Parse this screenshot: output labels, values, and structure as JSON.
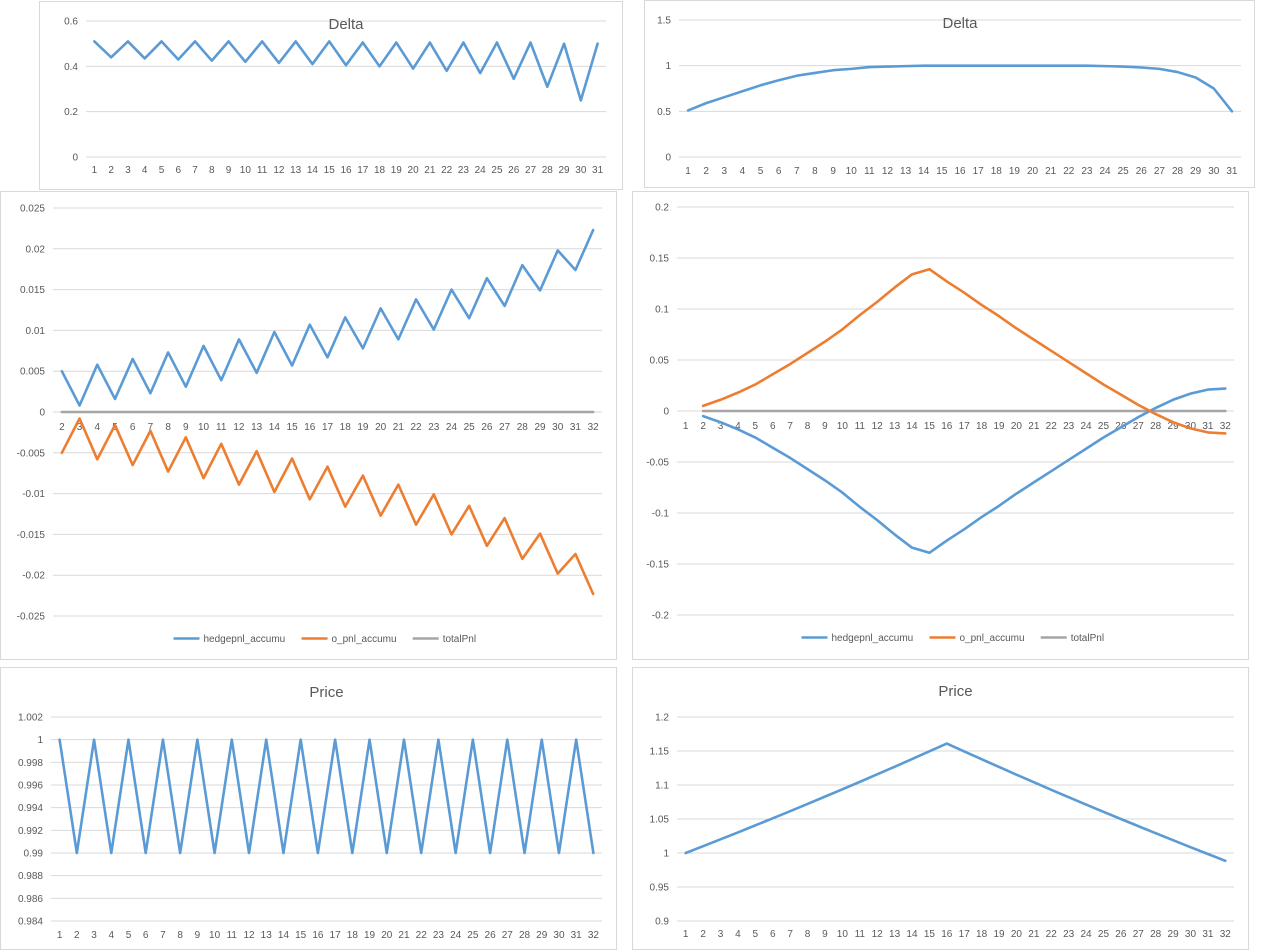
{
  "colors": {
    "blue": "#5b9bd5",
    "orange": "#ed7d31",
    "gray": "#a5a5a5",
    "grid": "#d9d9d9",
    "text": "#595959"
  },
  "chart_data": [
    {
      "type": "line",
      "title": "Delta",
      "x": [
        1,
        2,
        3,
        4,
        5,
        6,
        7,
        8,
        9,
        10,
        11,
        12,
        13,
        14,
        15,
        16,
        17,
        18,
        19,
        20,
        21,
        22,
        23,
        24,
        25,
        26,
        27,
        28,
        29,
        30,
        31
      ],
      "ylim": [
        0,
        0.6
      ],
      "yticks": [
        "0.6",
        "0.4",
        "0.2",
        "0"
      ],
      "series": [
        {
          "values": [
            0.51,
            0.44,
            0.51,
            0.435,
            0.51,
            0.43,
            0.51,
            0.425,
            0.51,
            0.42,
            0.51,
            0.415,
            0.51,
            0.41,
            0.51,
            0.405,
            0.505,
            0.4,
            0.505,
            0.39,
            0.505,
            0.38,
            0.505,
            0.37,
            0.505,
            0.345,
            0.505,
            0.31,
            0.5,
            0.25,
            0.5
          ]
        }
      ]
    },
    {
      "type": "line",
      "title": "Delta",
      "x": [
        1,
        2,
        3,
        4,
        5,
        6,
        7,
        8,
        9,
        10,
        11,
        12,
        13,
        14,
        15,
        16,
        17,
        18,
        19,
        20,
        21,
        22,
        23,
        24,
        25,
        26,
        27,
        28,
        29,
        30,
        31
      ],
      "ylim": [
        0,
        1.5
      ],
      "yticks": [
        "1.5",
        "1",
        "0.5",
        "0"
      ],
      "series": [
        {
          "values": [
            0.51,
            0.59,
            0.655,
            0.72,
            0.785,
            0.84,
            0.89,
            0.92,
            0.95,
            0.965,
            0.985,
            0.99,
            0.995,
            1,
            1,
            1,
            1,
            1,
            1,
            1,
            1,
            1,
            1,
            0.995,
            0.99,
            0.98,
            0.965,
            0.93,
            0.87,
            0.75,
            0.5
          ]
        }
      ]
    },
    {
      "type": "line",
      "title": "",
      "x": [
        2,
        3,
        4,
        5,
        6,
        7,
        8,
        9,
        10,
        11,
        12,
        13,
        14,
        15,
        16,
        17,
        18,
        19,
        20,
        21,
        22,
        23,
        24,
        25,
        26,
        27,
        28,
        29,
        30,
        31,
        32
      ],
      "ylim": [
        -0.025,
        0.025
      ],
      "yticks": [
        "0.025",
        "0.02",
        "0.015",
        "0.01",
        "0.005",
        "0",
        "-0.005",
        "-0.01",
        "-0.015",
        "-0.02",
        "-0.025"
      ],
      "legend": "bottom",
      "series": [
        {
          "name": "hedgepnl_accumu",
          "values": [
            0.005,
            0.0008,
            0.0058,
            0.0016,
            0.0065,
            0.0023,
            0.0073,
            0.0031,
            0.0081,
            0.0039,
            0.0089,
            0.0048,
            0.0098,
            0.0057,
            0.0107,
            0.0067,
            0.0116,
            0.0078,
            0.0127,
            0.0089,
            0.0138,
            0.0101,
            0.015,
            0.0115,
            0.0164,
            0.013,
            0.018,
            0.0149,
            0.0198,
            0.0174,
            0.0223
          ]
        },
        {
          "name": "o_pnl_accumu",
          "values": [
            -0.005,
            -0.0008,
            -0.0058,
            -0.0016,
            -0.0065,
            -0.0023,
            -0.0073,
            -0.0031,
            -0.0081,
            -0.0039,
            -0.0089,
            -0.0048,
            -0.0098,
            -0.0057,
            -0.0107,
            -0.0067,
            -0.0116,
            -0.0078,
            -0.0127,
            -0.0089,
            -0.0138,
            -0.0101,
            -0.015,
            -0.0115,
            -0.0164,
            -0.013,
            -0.018,
            -0.0149,
            -0.0198,
            -0.0174,
            -0.0223
          ]
        },
        {
          "name": "totalPnl",
          "values": [
            0,
            0,
            0,
            0,
            0,
            0,
            0,
            0,
            0,
            0,
            0,
            0,
            0,
            0,
            0,
            0,
            0,
            0,
            0,
            0,
            0,
            0,
            0,
            0,
            0,
            0,
            0,
            0,
            0,
            0,
            0
          ]
        }
      ]
    },
    {
      "type": "line",
      "title": "",
      "x": [
        1,
        2,
        3,
        4,
        5,
        6,
        7,
        8,
        9,
        10,
        11,
        12,
        13,
        14,
        15,
        16,
        17,
        18,
        19,
        20,
        21,
        22,
        23,
        24,
        25,
        26,
        27,
        28,
        29,
        30,
        31,
        32
      ],
      "ylim": [
        -0.2,
        0.2
      ],
      "yticks": [
        "0.2",
        "0.15",
        "0.1",
        "0.05",
        "0",
        "-0.05",
        "-0.1",
        "-0.15",
        "-0.2"
      ],
      "legend": "bottom",
      "series": [
        {
          "name": "hedgepnl_accumu",
          "values": [
            null,
            -0.005,
            -0.011,
            -0.018,
            -0.026,
            -0.036,
            -0.046,
            -0.057,
            -0.068,
            -0.08,
            -0.094,
            -0.107,
            -0.121,
            -0.134,
            -0.139,
            -0.127,
            -0.116,
            -0.104,
            -0.093,
            -0.081,
            -0.07,
            -0.059,
            -0.048,
            -0.037,
            -0.026,
            -0.016,
            -0.006,
            0.003,
            0.011,
            0.017,
            0.021,
            0.022
          ]
        },
        {
          "name": "o_pnl_accumu",
          "values": [
            null,
            0.005,
            0.011,
            0.018,
            0.026,
            0.036,
            0.046,
            0.057,
            0.068,
            0.08,
            0.094,
            0.107,
            0.121,
            0.134,
            0.139,
            0.127,
            0.116,
            0.104,
            0.093,
            0.081,
            0.07,
            0.059,
            0.048,
            0.037,
            0.026,
            0.016,
            0.006,
            -0.003,
            -0.011,
            -0.017,
            -0.021,
            -0.022
          ]
        },
        {
          "name": "totalPnl",
          "values": [
            null,
            0,
            0,
            0,
            0,
            0,
            0,
            0,
            0,
            0,
            0,
            0,
            0,
            0,
            0,
            0,
            0,
            0,
            0,
            0,
            0,
            0,
            0,
            0,
            0,
            0,
            0,
            0,
            0,
            0,
            0,
            0
          ]
        }
      ]
    },
    {
      "type": "line",
      "title": "Price",
      "x": [
        1,
        2,
        3,
        4,
        5,
        6,
        7,
        8,
        9,
        10,
        11,
        12,
        13,
        14,
        15,
        16,
        17,
        18,
        19,
        20,
        21,
        22,
        23,
        24,
        25,
        26,
        27,
        28,
        29,
        30,
        31,
        32
      ],
      "ylim": [
        0.984,
        1.002
      ],
      "yticks": [
        "1.002",
        "1",
        "0.998",
        "0.996",
        "0.994",
        "0.992",
        "0.99",
        "0.988",
        "0.986",
        "0.984"
      ],
      "series": [
        {
          "values": [
            1,
            0.99,
            1,
            0.99,
            1,
            0.99,
            1,
            0.99,
            1,
            0.99,
            1,
            0.99,
            1,
            0.99,
            1,
            0.99,
            1,
            0.99,
            1,
            0.99,
            1,
            0.99,
            1,
            0.99,
            1,
            0.99,
            1,
            0.99,
            1,
            0.99,
            1,
            0.99
          ]
        }
      ]
    },
    {
      "type": "line",
      "title": "Price",
      "x": [
        1,
        2,
        3,
        4,
        5,
        6,
        7,
        8,
        9,
        10,
        11,
        12,
        13,
        14,
        15,
        16,
        17,
        18,
        19,
        20,
        21,
        22,
        23,
        24,
        25,
        26,
        27,
        28,
        29,
        30,
        31,
        32
      ],
      "ylim": [
        0.9,
        1.2
      ],
      "yticks": [
        "1.2",
        "1.15",
        "1.1",
        "1.05",
        "1",
        "0.95",
        "0.9"
      ],
      "series": [
        {
          "values": [
            1,
            1.01,
            1.0201,
            1.0303,
            1.0406,
            1.051,
            1.0615,
            1.0721,
            1.0829,
            1.0937,
            1.1046,
            1.1157,
            1.1268,
            1.1381,
            1.1495,
            1.161,
            1.1494,
            1.1379,
            1.1265,
            1.1152,
            1.1041,
            1.093,
            1.0821,
            1.0713,
            1.0606,
            1.05,
            1.0395,
            1.0291,
            1.0188,
            1.0086,
            0.9985,
            0.9885
          ]
        }
      ]
    }
  ]
}
